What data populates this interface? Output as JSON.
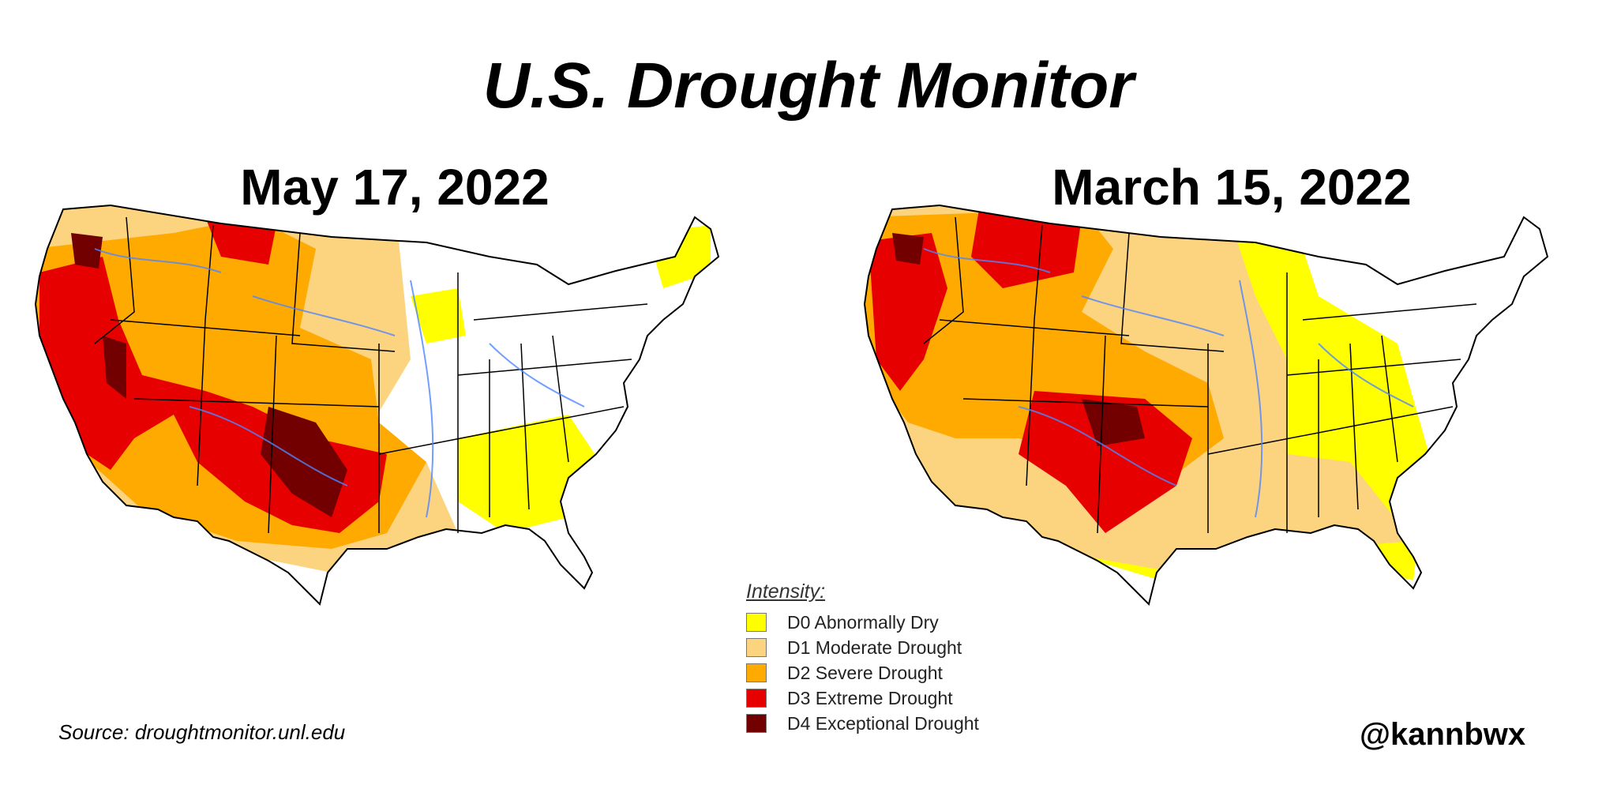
{
  "title": "U.S. Drought Monitor",
  "maps": [
    {
      "date": "May 17, 2022"
    },
    {
      "date": "March 15, 2022"
    }
  ],
  "legend": {
    "title": "Intensity:",
    "items": [
      {
        "label": "D0 Abnormally Dry",
        "color": "#ffff00"
      },
      {
        "label": "D1 Moderate Drought",
        "color": "#fcd37f"
      },
      {
        "label": "D2 Severe Drought",
        "color": "#ffaa00"
      },
      {
        "label": "D3 Extreme Drought",
        "color": "#e60000"
      },
      {
        "label": "D4 Exceptional Drought",
        "color": "#730000"
      }
    ]
  },
  "source": "Source: droughtmonitor.unl.edu",
  "handle": "@kannbwx"
}
